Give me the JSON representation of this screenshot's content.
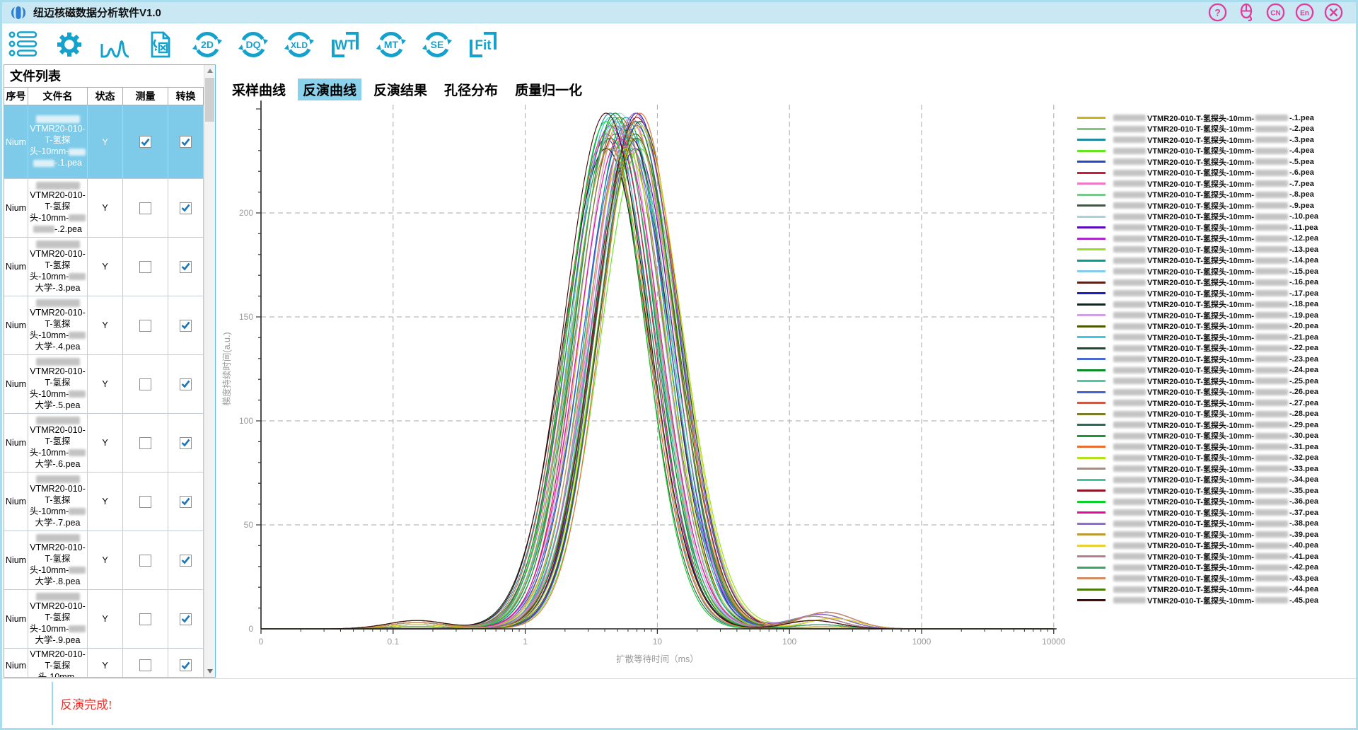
{
  "window": {
    "title": "纽迈核磁数据分析软件V1.0"
  },
  "titlebar": {
    "accent": "#e6399b",
    "buttons": [
      {
        "name": "help",
        "glyph": "?"
      },
      {
        "name": "mouse-feedback",
        "glyph": ""
      },
      {
        "name": "lang-cn",
        "glyph": "CN"
      },
      {
        "name": "lang-en",
        "glyph": "En"
      },
      {
        "name": "close",
        "glyph": "x"
      }
    ]
  },
  "toolbar": {
    "icon_color": "#14a2cc",
    "items": [
      {
        "name": "file-list",
        "type": "list",
        "label": ""
      },
      {
        "name": "settings",
        "type": "gear",
        "label": ""
      },
      {
        "name": "peak-analysis",
        "type": "peaks",
        "label": ""
      },
      {
        "name": "file-convert",
        "type": "file",
        "label": ""
      },
      {
        "name": "convert-2d",
        "type": "circ",
        "label": "2D"
      },
      {
        "name": "convert-dq",
        "type": "circ",
        "label": "DQ"
      },
      {
        "name": "convert-xld",
        "type": "circ",
        "label": "XLD"
      },
      {
        "name": "convert-wt",
        "type": "bracket",
        "label": "WT"
      },
      {
        "name": "convert-mt",
        "type": "circ",
        "label": "MT"
      },
      {
        "name": "convert-se",
        "type": "circ",
        "label": "SE"
      },
      {
        "name": "fit",
        "type": "bracket",
        "label": "Fit"
      }
    ]
  },
  "file_panel": {
    "title": "文件列表",
    "columns": [
      "序号",
      "文件名",
      "状态",
      "测量",
      "转换"
    ],
    "name_lines": [
      "VTMR20-010-",
      "T-氢探",
      "头-10mm-"
    ],
    "rows": [
      {
        "seq": "Nium",
        "suffix": "-.1.pea",
        "suffix_blur": true,
        "status": "Y",
        "measure": true,
        "convert": true,
        "selected": true,
        "partial": false
      },
      {
        "seq": "Nium",
        "suffix": "-.2.pea",
        "suffix_blur": true,
        "status": "Y",
        "measure": false,
        "convert": true,
        "selected": false,
        "partial": false
      },
      {
        "seq": "Nium",
        "suffix": "大学-.3.pea",
        "suffix_blur": false,
        "status": "Y",
        "measure": false,
        "convert": true,
        "selected": false,
        "partial": false
      },
      {
        "seq": "Nium",
        "suffix": "大学-.4.pea",
        "suffix_blur": false,
        "status": "Y",
        "measure": false,
        "convert": true,
        "selected": false,
        "partial": false
      },
      {
        "seq": "Nium",
        "suffix": "大学-.5.pea",
        "suffix_blur": false,
        "status": "Y",
        "measure": false,
        "convert": true,
        "selected": false,
        "partial": false
      },
      {
        "seq": "Nium",
        "suffix": "大学-.6.pea",
        "suffix_blur": false,
        "status": "Y",
        "measure": false,
        "convert": true,
        "selected": false,
        "partial": false
      },
      {
        "seq": "Nium",
        "suffix": "大学-.7.pea",
        "suffix_blur": false,
        "status": "Y",
        "measure": false,
        "convert": true,
        "selected": false,
        "partial": false
      },
      {
        "seq": "Nium",
        "suffix": "大学-.8.pea",
        "suffix_blur": false,
        "status": "Y",
        "measure": false,
        "convert": true,
        "selected": false,
        "partial": false
      },
      {
        "seq": "Nium",
        "suffix": "大学-.9.pea",
        "suffix_blur": false,
        "status": "Y",
        "measure": false,
        "convert": true,
        "selected": false,
        "partial": false
      },
      {
        "seq": "Nium",
        "suffix": "",
        "suffix_blur": false,
        "status": "Y",
        "measure": false,
        "convert": true,
        "selected": false,
        "partial": true
      }
    ]
  },
  "tabs": [
    {
      "label": "采样曲线",
      "active": false
    },
    {
      "label": "反演曲线",
      "active": true
    },
    {
      "label": "反演结果",
      "active": false
    },
    {
      "label": "孔径分布",
      "active": false
    },
    {
      "label": "质量归一化",
      "active": false
    }
  ],
  "chart_data": {
    "type": "line",
    "title": "",
    "xlabel": "扩散等待时间（ms）",
    "ylabel": "梯度持续时间(a.u.)",
    "x_scale": "log",
    "x_ticks": [
      {
        "label": "0",
        "t": -2
      },
      {
        "label": "0.1",
        "t": -1
      },
      {
        "label": "1",
        "t": 0
      },
      {
        "label": "10",
        "t": 1
      },
      {
        "label": "100",
        "t": 2
      },
      {
        "label": "1000",
        "t": 3
      },
      {
        "label": "10000",
        "t": 4
      }
    ],
    "y_ticks": [
      0,
      50,
      100,
      150,
      200
    ],
    "ylim": [
      0,
      255
    ],
    "grid": "dashed",
    "legend_label_mid": "VTMR20-010-T-氢探头-10mm-",
    "series": [
      {
        "end": "-.1.pea",
        "color": "#c8b41e",
        "peak_ms": 5.2,
        "amp": 244,
        "tail": 6,
        "pre": 3
      },
      {
        "end": "-.2.pea",
        "color": "#7cc87c",
        "peak_ms": 6.8,
        "amp": 236,
        "tail": 2,
        "pre": 1
      },
      {
        "end": "-.3.pea",
        "color": "#1e8ca0",
        "peak_ms": 4.4,
        "amp": 248,
        "tail": 8,
        "pre": 4
      },
      {
        "end": "-.4.pea",
        "color": "#64e61e",
        "peak_ms": 7.4,
        "amp": 231,
        "tail": 0,
        "pre": 2
      },
      {
        "end": "-.5.pea",
        "color": "#2846c8",
        "peak_ms": 5.8,
        "amp": 242,
        "tail": 4,
        "pre": 0
      },
      {
        "end": "-.6.pea",
        "color": "#c81e3c",
        "peak_ms": 4.8,
        "amp": 238,
        "tail": 7,
        "pre": 3
      },
      {
        "end": "-.7.pea",
        "color": "#f078c8",
        "peak_ms": 6.3,
        "amp": 246,
        "tail": 1,
        "pre": 3
      },
      {
        "end": "-.8.pea",
        "color": "#78c88c",
        "peak_ms": 7.0,
        "amp": 244,
        "tail": 5,
        "pre": 1
      },
      {
        "end": "-.9.pea",
        "color": "#3c5a3c",
        "peak_ms": 4.1,
        "amp": 236,
        "tail": 6,
        "pre": 4
      },
      {
        "end": "-.10.pea",
        "color": "#aad2dc",
        "peak_ms": 5.2,
        "amp": 248,
        "tail": 2,
        "pre": 2
      },
      {
        "end": "-.11.pea",
        "color": "#5a0abe",
        "peak_ms": 6.8,
        "amp": 231,
        "tail": 8,
        "pre": 0
      },
      {
        "end": "-.12.pea",
        "color": "#aa28c8",
        "peak_ms": 4.4,
        "amp": 242,
        "tail": 0,
        "pre": 3
      },
      {
        "end": "-.13.pea",
        "color": "#96e11e",
        "peak_ms": 7.4,
        "amp": 238,
        "tail": 4,
        "pre": 3
      },
      {
        "end": "-.14.pea",
        "color": "#00a08c",
        "peak_ms": 5.8,
        "amp": 246,
        "tail": 7,
        "pre": 1
      },
      {
        "end": "-.15.pea",
        "color": "#82cdeb",
        "peak_ms": 4.8,
        "amp": 244,
        "tail": 1,
        "pre": 4
      },
      {
        "end": "-.16.pea",
        "color": "#5a1e14",
        "peak_ms": 6.3,
        "amp": 236,
        "tail": 5,
        "pre": 2
      },
      {
        "end": "-.17.pea",
        "color": "#1e1ec8",
        "peak_ms": 7.0,
        "amp": 248,
        "tail": 6,
        "pre": 0
      },
      {
        "end": "-.18.pea",
        "color": "#0a281e",
        "peak_ms": 4.1,
        "amp": 231,
        "tail": 2,
        "pre": 3
      },
      {
        "end": "-.19.pea",
        "color": "#d2a0e6",
        "peak_ms": 5.2,
        "amp": 242,
        "tail": 8,
        "pre": 3
      },
      {
        "end": "-.20.pea",
        "color": "#4b5a00",
        "peak_ms": 6.8,
        "amp": 238,
        "tail": 0,
        "pre": 1
      },
      {
        "end": "-.21.pea",
        "color": "#3cc8e6",
        "peak_ms": 4.4,
        "amp": 246,
        "tail": 4,
        "pre": 4
      },
      {
        "end": "-.22.pea",
        "color": "#1e4b2d",
        "peak_ms": 7.4,
        "amp": 244,
        "tail": 7,
        "pre": 2
      },
      {
        "end": "-.23.pea",
        "color": "#4b69d2",
        "peak_ms": 5.8,
        "amp": 236,
        "tail": 1,
        "pre": 0
      },
      {
        "end": "-.24.pea",
        "color": "#0a8c28",
        "peak_ms": 4.8,
        "amp": 248,
        "tail": 5,
        "pre": 3
      },
      {
        "end": "-.25.pea",
        "color": "#50c8a0",
        "peak_ms": 6.3,
        "amp": 231,
        "tail": 6,
        "pre": 3
      },
      {
        "end": "-.26.pea",
        "color": "#4464d2",
        "peak_ms": 7.0,
        "amp": 242,
        "tail": 2,
        "pre": 1
      },
      {
        "end": "-.27.pea",
        "color": "#c85a46",
        "peak_ms": 4.1,
        "amp": 238,
        "tail": 8,
        "pre": 4
      },
      {
        "end": "-.28.pea",
        "color": "#7b7b28",
        "peak_ms": 5.2,
        "amp": 246,
        "tail": 0,
        "pre": 2
      },
      {
        "end": "-.29.pea",
        "color": "#286b5a",
        "peak_ms": 6.8,
        "amp": 244,
        "tail": 4,
        "pre": 0
      },
      {
        "end": "-.30.pea",
        "color": "#1e9637",
        "peak_ms": 4.4,
        "amp": 236,
        "tail": 7,
        "pre": 3
      },
      {
        "end": "-.31.pea",
        "color": "#e66e32",
        "peak_ms": 7.4,
        "amp": 248,
        "tail": 1,
        "pre": 3
      },
      {
        "end": "-.32.pea",
        "color": "#b4e11e",
        "peak_ms": 5.8,
        "amp": 231,
        "tail": 5,
        "pre": 1
      },
      {
        "end": "-.33.pea",
        "color": "#a98c7d",
        "peak_ms": 4.8,
        "amp": 242,
        "tail": 6,
        "pre": 4
      },
      {
        "end": "-.34.pea",
        "color": "#46c39b",
        "peak_ms": 6.3,
        "amp": 238,
        "tail": 2,
        "pre": 2
      },
      {
        "end": "-.35.pea",
        "color": "#8c1423",
        "peak_ms": 7.0,
        "amp": 246,
        "tail": 8,
        "pre": 0
      },
      {
        "end": "-.36.pea",
        "color": "#0ad228",
        "peak_ms": 4.1,
        "amp": 244,
        "tail": 0,
        "pre": 3
      },
      {
        "end": "-.37.pea",
        "color": "#e60aa0",
        "peak_ms": 5.2,
        "amp": 236,
        "tail": 4,
        "pre": 3
      },
      {
        "end": "-.38.pea",
        "color": "#966bd8",
        "peak_ms": 6.8,
        "amp": 248,
        "tail": 7,
        "pre": 1
      },
      {
        "end": "-.39.pea",
        "color": "#b99a32",
        "peak_ms": 4.4,
        "amp": 231,
        "tail": 1,
        "pre": 4
      },
      {
        "end": "-.40.pea",
        "color": "#e6d232",
        "peak_ms": 7.4,
        "amp": 242,
        "tail": 5,
        "pre": 2
      },
      {
        "end": "-.41.pea",
        "color": "#b97b91",
        "peak_ms": 5.8,
        "amp": 238,
        "tail": 6,
        "pre": 0
      },
      {
        "end": "-.42.pea",
        "color": "#37a860",
        "peak_ms": 4.8,
        "amp": 246,
        "tail": 2,
        "pre": 3
      },
      {
        "end": "-.43.pea",
        "color": "#d28c64",
        "peak_ms": 6.3,
        "amp": 244,
        "tail": 8,
        "pre": 3
      },
      {
        "end": "-.44.pea",
        "color": "#4b7b0a",
        "peak_ms": 7.0,
        "amp": 236,
        "tail": 0,
        "pre": 1
      },
      {
        "end": "-.45.pea",
        "color": "#460a0a",
        "peak_ms": 4.1,
        "amp": 248,
        "tail": 4,
        "pre": 4
      }
    ]
  },
  "status_bar": {
    "message": "反演完成!"
  }
}
